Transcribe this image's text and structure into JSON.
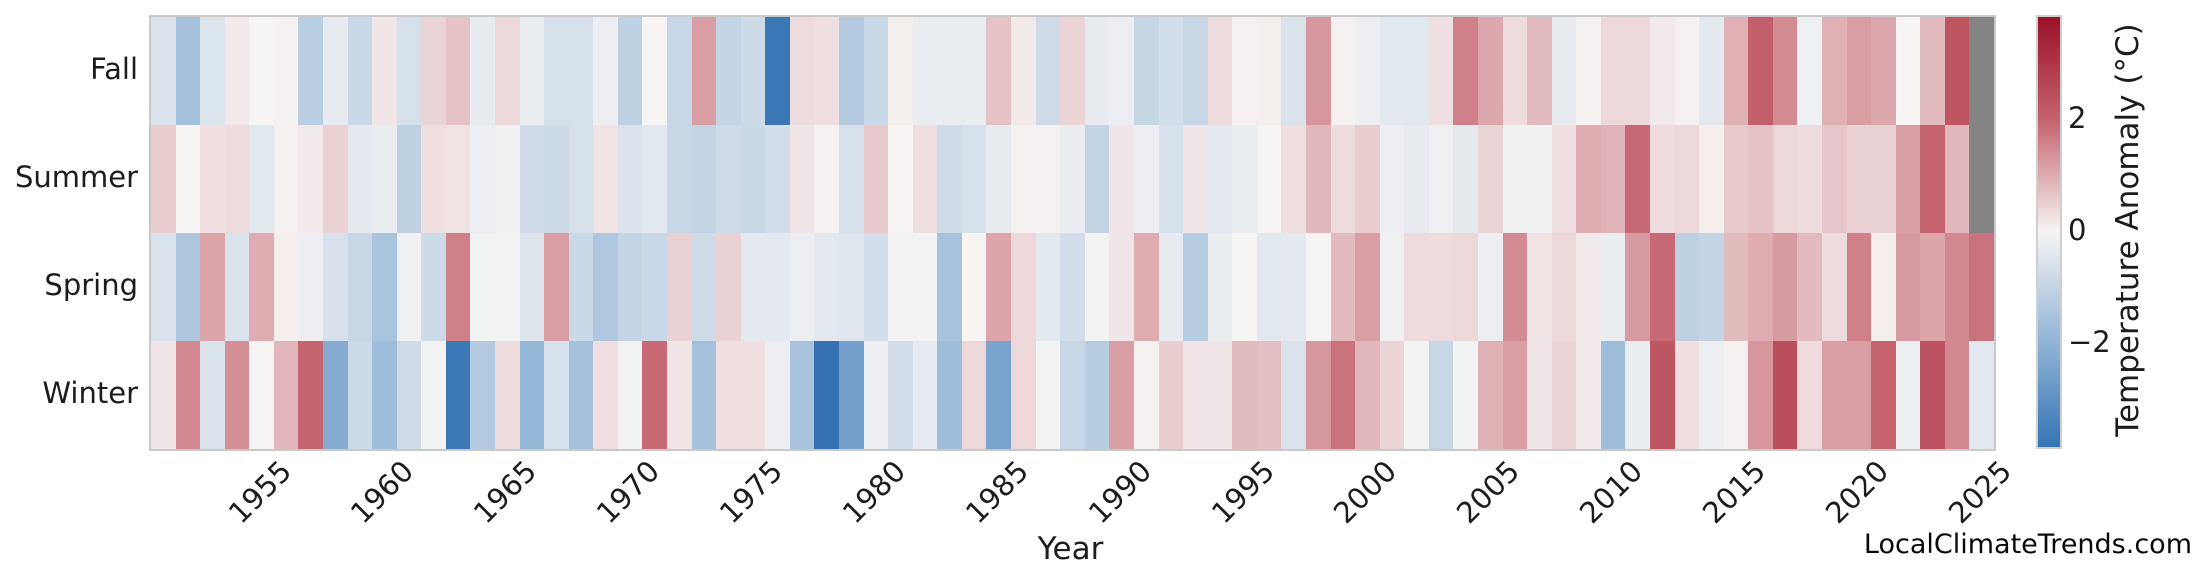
{
  "watermark": "LocalClimateTrends.com",
  "chart_data": {
    "type": "heatmap",
    "xlabel": "Year",
    "year_start": 1951,
    "year_end": 2025,
    "x_tick_labels": [
      "1955",
      "1960",
      "1965",
      "1970",
      "1975",
      "1980",
      "1985",
      "1990",
      "1995",
      "2000",
      "2005",
      "2010",
      "2015",
      "2020",
      "2025"
    ],
    "rows": [
      "Fall",
      "Summer",
      "Spring",
      "Winter"
    ],
    "colorbar": {
      "label": "Temperature Anomaly (°C)",
      "tick_values": [
        2,
        0,
        -2
      ],
      "tick_labels": [
        "2",
        "0",
        "−2"
      ],
      "vmin": -3.85,
      "vmax": 3.85,
      "missing_color": "#848484",
      "gradient_stops": [
        "#9b1127",
        "#c5636e",
        "#f6f5f4",
        "#8fb3d5",
        "#3574b5"
      ]
    },
    "series": [
      {
        "name": "Fall",
        "values": [
          -0.55,
          -1.6,
          -0.5,
          0.15,
          0.0,
          0.05,
          -1.15,
          -0.3,
          -0.85,
          0.2,
          -0.65,
          0.45,
          0.7,
          -0.3,
          0.4,
          -0.25,
          -0.65,
          -0.65,
          -0.2,
          -1.1,
          0.0,
          -0.9,
          1.2,
          -1.0,
          -0.8,
          -3.6,
          0.35,
          0.3,
          -1.3,
          -0.85,
          0.1,
          -0.25,
          -0.25,
          -0.25,
          0.7,
          0.15,
          -0.75,
          0.45,
          -0.3,
          -0.2,
          -0.95,
          -0.7,
          -0.9,
          0.35,
          0.05,
          0.1,
          -0.55,
          1.3,
          0.05,
          -0.2,
          -0.4,
          -0.4,
          0.3,
          1.6,
          1.05,
          0.35,
          0.8,
          -0.3,
          0.05,
          0.4,
          0.4,
          0.15,
          0.05,
          -0.35,
          0.95,
          2.1,
          1.45,
          -0.15,
          0.95,
          1.2,
          1.05,
          0.0,
          0.8,
          2.3,
          null
        ]
      },
      {
        "name": "Summer",
        "values": [
          0.55,
          0.0,
          0.3,
          0.35,
          -0.4,
          0.05,
          0.15,
          0.5,
          -0.35,
          -0.25,
          -1.1,
          0.3,
          0.25,
          -0.2,
          -0.15,
          -0.75,
          -0.8,
          -0.65,
          0.25,
          -0.55,
          -0.4,
          -0.9,
          -1.0,
          -0.75,
          -0.85,
          -0.7,
          0.2,
          0.05,
          -0.65,
          0.6,
          0.0,
          0.3,
          -0.75,
          -0.65,
          -0.3,
          0.05,
          0.05,
          -0.25,
          -1.0,
          0.2,
          -0.2,
          -0.6,
          0.2,
          -0.35,
          -0.25,
          0.0,
          0.3,
          0.85,
          0.35,
          0.55,
          -0.2,
          -0.3,
          -0.15,
          -0.35,
          0.45,
          -0.15,
          -0.15,
          0.3,
          1.0,
          0.9,
          1.9,
          0.35,
          0.4,
          0.1,
          0.6,
          0.7,
          0.4,
          0.35,
          0.65,
          0.5,
          0.5,
          1.2,
          2.0,
          0.85,
          null
        ]
      },
      {
        "name": "Spring",
        "values": [
          -0.55,
          -1.4,
          1.1,
          -0.55,
          1.0,
          0.1,
          -0.2,
          -0.6,
          -0.9,
          -1.5,
          -0.15,
          -0.8,
          1.6,
          -0.1,
          -0.1,
          -0.5,
          1.2,
          -0.85,
          -1.35,
          -1.0,
          -0.85,
          0.5,
          -0.75,
          0.5,
          -0.35,
          -0.35,
          -0.2,
          -0.4,
          -0.45,
          -0.7,
          -0.05,
          -0.05,
          -1.55,
          0.0,
          1.1,
          0.4,
          -0.4,
          -0.7,
          -0.1,
          0.2,
          1.0,
          -0.3,
          -1.25,
          -0.25,
          0.0,
          -0.4,
          -0.35,
          0.0,
          0.8,
          1.2,
          -0.15,
          0.35,
          0.35,
          0.4,
          -0.2,
          1.45,
          0.25,
          0.4,
          0.15,
          -0.25,
          1.25,
          1.9,
          -1.1,
          -1.0,
          0.8,
          1.0,
          1.25,
          0.8,
          0.35,
          1.6,
          0.1,
          1.25,
          1.1,
          1.5,
          1.8
        ]
      },
      {
        "name": "Winter",
        "values": [
          0.2,
          1.5,
          -0.55,
          1.4,
          0.0,
          0.85,
          2.0,
          -2.2,
          -0.8,
          -1.7,
          -0.75,
          -0.1,
          -3.6,
          -1.3,
          0.35,
          -1.9,
          -0.6,
          -1.6,
          0.3,
          -0.1,
          1.9,
          0.2,
          -1.6,
          0.3,
          0.3,
          -0.2,
          -1.55,
          -3.7,
          -2.5,
          -0.2,
          -0.7,
          -0.3,
          -1.7,
          0.4,
          -2.4,
          0.4,
          -0.05,
          -0.9,
          -1.25,
          1.2,
          0.05,
          0.55,
          0.2,
          0.2,
          0.8,
          0.75,
          -0.55,
          1.3,
          1.8,
          0.85,
          0.45,
          -0.1,
          -0.9,
          -0.1,
          0.95,
          1.2,
          0.2,
          0.45,
          0.15,
          -1.7,
          -0.25,
          2.3,
          0.3,
          -0.2,
          0.05,
          1.3,
          2.5,
          0.35,
          1.2,
          1.2,
          2.0,
          -0.2,
          2.4,
          1.5,
          -0.4
        ]
      }
    ]
  }
}
